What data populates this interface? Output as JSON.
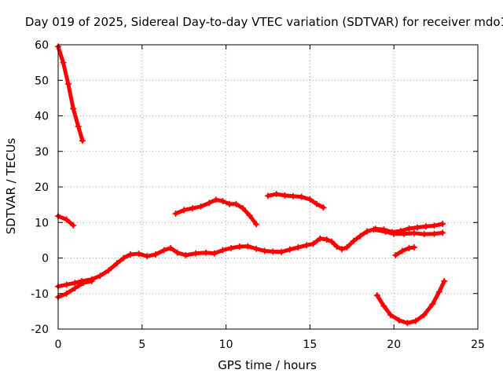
{
  "chart_data": {
    "type": "scatter",
    "title": "Day 019 of 2025, Sidereal Day-to-day VTEC variation (SDTVAR) for receiver mdo1",
    "xlabel": "GPS time / hours",
    "ylabel": "SDTVAR / TECUs",
    "xlim": [
      0,
      25
    ],
    "ylim": [
      -20,
      60
    ],
    "xticks": [
      0,
      5,
      10,
      15,
      20,
      25
    ],
    "yticks": [
      -20,
      -10,
      0,
      10,
      20,
      30,
      40,
      50,
      60
    ],
    "grid": true,
    "marker_color": "#ff0000",
    "series": [
      {
        "name": "arc-steep-top",
        "points": [
          [
            0.0,
            59.5
          ],
          [
            0.3,
            55
          ],
          [
            0.6,
            49
          ],
          [
            0.9,
            42
          ],
          [
            1.2,
            37
          ],
          [
            1.45,
            33
          ]
        ]
      },
      {
        "name": "arc-small-top-left",
        "points": [
          [
            0.0,
            11.8
          ],
          [
            0.5,
            10.8
          ],
          [
            0.9,
            9.2
          ]
        ]
      },
      {
        "name": "arc-main-lower",
        "points": [
          [
            0.0,
            -8
          ],
          [
            0.5,
            -7.5
          ],
          [
            1.0,
            -7
          ],
          [
            1.4,
            -6.5
          ],
          [
            2.0,
            -6
          ],
          [
            2.5,
            -5
          ],
          [
            3.0,
            -3.5
          ],
          [
            3.5,
            -1.5
          ],
          [
            3.9,
            0
          ],
          [
            4.3,
            1
          ],
          [
            4.8,
            1.2
          ],
          [
            5.3,
            0.5
          ],
          [
            5.8,
            1
          ],
          [
            6.3,
            2.2
          ],
          [
            6.7,
            2.8
          ],
          [
            7.1,
            1.5
          ],
          [
            7.6,
            0.8
          ],
          [
            8.2,
            1.3
          ],
          [
            8.8,
            1.5
          ],
          [
            9.3,
            1.3
          ],
          [
            9.8,
            2.2
          ],
          [
            10.3,
            2.8
          ],
          [
            10.8,
            3.2
          ],
          [
            11.3,
            3.3
          ],
          [
            11.8,
            2.6
          ],
          [
            12.3,
            2
          ],
          [
            12.8,
            1.8
          ],
          [
            13.3,
            1.7
          ],
          [
            13.8,
            2.4
          ],
          [
            14.3,
            3
          ],
          [
            14.8,
            3.6
          ],
          [
            15.2,
            4
          ],
          [
            15.6,
            5.5
          ],
          [
            16.0,
            5.2
          ],
          [
            16.3,
            4.6
          ],
          [
            16.6,
            3.2
          ],
          [
            16.9,
            2.5
          ],
          [
            17.2,
            3
          ],
          [
            17.6,
            4.8
          ],
          [
            18.0,
            6.2
          ],
          [
            18.4,
            7.5
          ],
          [
            18.9,
            8.2
          ],
          [
            19.4,
            8
          ],
          [
            19.9,
            7.3
          ],
          [
            20.4,
            7.6
          ],
          [
            20.9,
            8.3
          ],
          [
            21.4,
            8.6
          ],
          [
            21.9,
            8.9
          ],
          [
            22.4,
            9.1
          ],
          [
            22.9,
            9.6
          ]
        ]
      },
      {
        "name": "arc-lower-start",
        "points": [
          [
            0.0,
            -11
          ],
          [
            0.5,
            -10
          ],
          [
            1.0,
            -8.5
          ],
          [
            1.5,
            -7
          ],
          [
            2.0,
            -6.5
          ]
        ]
      },
      {
        "name": "arc-upper-mid",
        "points": [
          [
            7.0,
            12.5
          ],
          [
            7.5,
            13.5
          ],
          [
            8.0,
            14
          ],
          [
            8.5,
            14.5
          ],
          [
            9.0,
            15.5
          ],
          [
            9.4,
            16.4
          ],
          [
            9.8,
            16
          ],
          [
            10.2,
            15.2
          ],
          [
            10.6,
            15.2
          ],
          [
            11.0,
            14
          ],
          [
            11.4,
            12
          ],
          [
            11.8,
            9.5
          ]
        ]
      },
      {
        "name": "arc-upper-right",
        "points": [
          [
            12.5,
            17.5
          ],
          [
            13.0,
            18
          ],
          [
            13.5,
            17.6
          ],
          [
            14.0,
            17.4
          ],
          [
            14.5,
            17.2
          ],
          [
            15.0,
            16.5
          ],
          [
            15.4,
            15.2
          ],
          [
            15.8,
            14.2
          ]
        ]
      },
      {
        "name": "arc-right-flat",
        "points": [
          [
            18.8,
            8
          ],
          [
            19.5,
            7.4
          ],
          [
            20.0,
            6.8
          ],
          [
            20.6,
            6.8
          ],
          [
            21.2,
            7
          ],
          [
            21.8,
            6.7
          ],
          [
            22.4,
            6.8
          ],
          [
            22.9,
            7.1
          ]
        ]
      },
      {
        "name": "arc-small-right",
        "points": [
          [
            20.1,
            0.8
          ],
          [
            20.5,
            2
          ],
          [
            20.9,
            2.8
          ],
          [
            21.2,
            3
          ]
        ]
      },
      {
        "name": "arc-dip",
        "points": [
          [
            19.0,
            -10.5
          ],
          [
            19.4,
            -13.5
          ],
          [
            19.8,
            -16
          ],
          [
            20.3,
            -17.5
          ],
          [
            20.8,
            -18.3
          ],
          [
            21.3,
            -17.7
          ],
          [
            21.8,
            -16
          ],
          [
            22.3,
            -13
          ],
          [
            22.7,
            -9.5
          ],
          [
            23.0,
            -6.5
          ]
        ]
      }
    ]
  }
}
